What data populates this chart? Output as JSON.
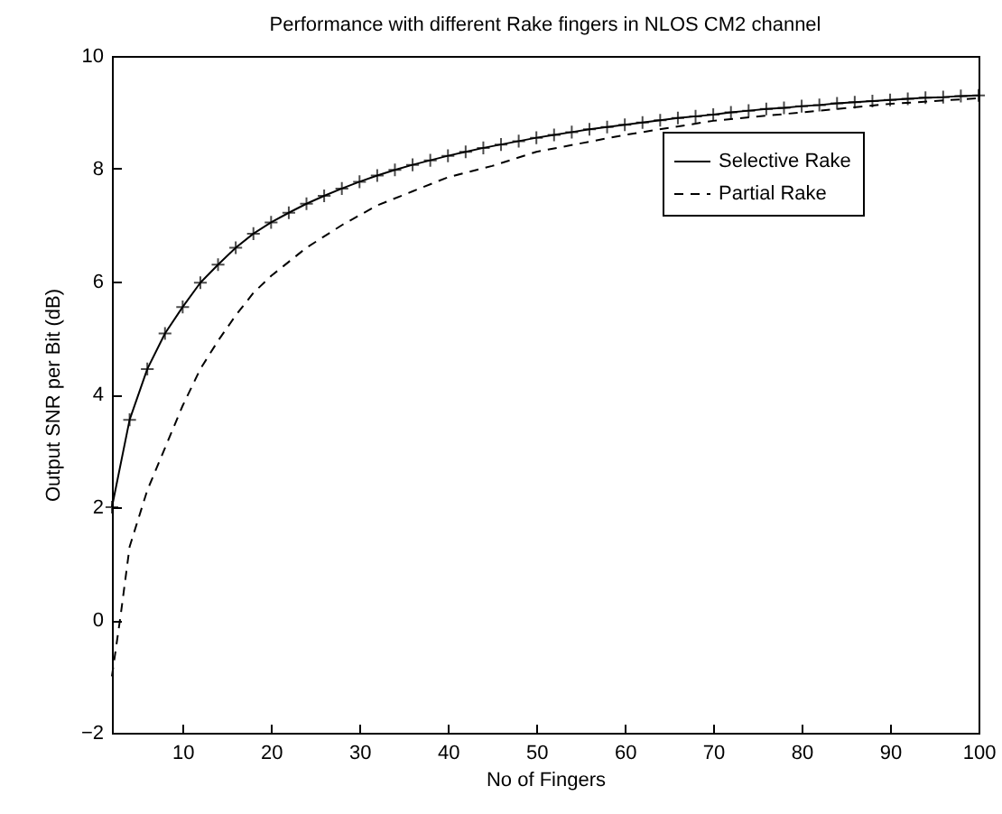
{
  "chart_data": {
    "type": "line",
    "title": "Performance with different Rake fingers in  NLOS CM2 channel",
    "xlabel": "No of Fingers",
    "ylabel": "Output SNR per Bit (dB)",
    "xlim": [
      2,
      100
    ],
    "xticks": [
      10,
      20,
      30,
      40,
      50,
      60,
      70,
      80,
      90,
      100
    ],
    "ylim": [
      -2,
      10
    ],
    "yticks": [
      -2,
      0,
      2,
      4,
      6,
      8,
      10
    ],
    "grid": false,
    "legend": "top right",
    "series": [
      {
        "name": "Selective Rake",
        "color": "#000000",
        "marker": "cross",
        "line_style": "solid",
        "x": [
          2,
          4,
          6,
          8,
          10,
          12,
          14,
          16,
          18,
          20,
          22,
          24,
          26,
          28,
          30,
          32,
          34,
          36,
          38,
          40,
          42,
          44,
          46,
          48,
          50,
          52,
          54,
          56,
          58,
          60,
          62,
          64,
          66,
          68,
          70,
          72,
          74,
          76,
          78,
          80,
          82,
          84,
          86,
          88,
          90,
          92,
          94,
          96,
          98,
          100
        ],
        "values": [
          2.0,
          3.55,
          4.45,
          5.08,
          5.55,
          5.98,
          6.3,
          6.6,
          6.85,
          7.05,
          7.22,
          7.38,
          7.52,
          7.65,
          7.77,
          7.88,
          7.98,
          8.07,
          8.15,
          8.23,
          8.3,
          8.37,
          8.43,
          8.49,
          8.55,
          8.6,
          8.65,
          8.7,
          8.74,
          8.78,
          8.82,
          8.86,
          8.9,
          8.93,
          8.96,
          9.0,
          9.03,
          9.06,
          9.08,
          9.11,
          9.13,
          9.16,
          9.18,
          9.2,
          9.22,
          9.24,
          9.26,
          9.27,
          9.29,
          9.3
        ]
      },
      {
        "name": "Partial Rake",
        "color": "#000000",
        "marker": "none",
        "line_style": "dashed",
        "x": [
          2,
          3,
          4,
          6,
          8,
          10,
          12,
          14,
          16,
          18,
          20,
          24,
          28,
          32,
          36,
          40,
          45,
          50,
          55,
          60,
          70,
          80,
          90,
          100
        ],
        "values": [
          -1.0,
          0.1,
          1.3,
          2.3,
          3.05,
          3.8,
          4.45,
          4.95,
          5.4,
          5.8,
          6.1,
          6.6,
          7.0,
          7.35,
          7.6,
          7.85,
          8.05,
          8.3,
          8.45,
          8.6,
          8.85,
          9.0,
          9.15,
          9.25
        ]
      }
    ]
  }
}
